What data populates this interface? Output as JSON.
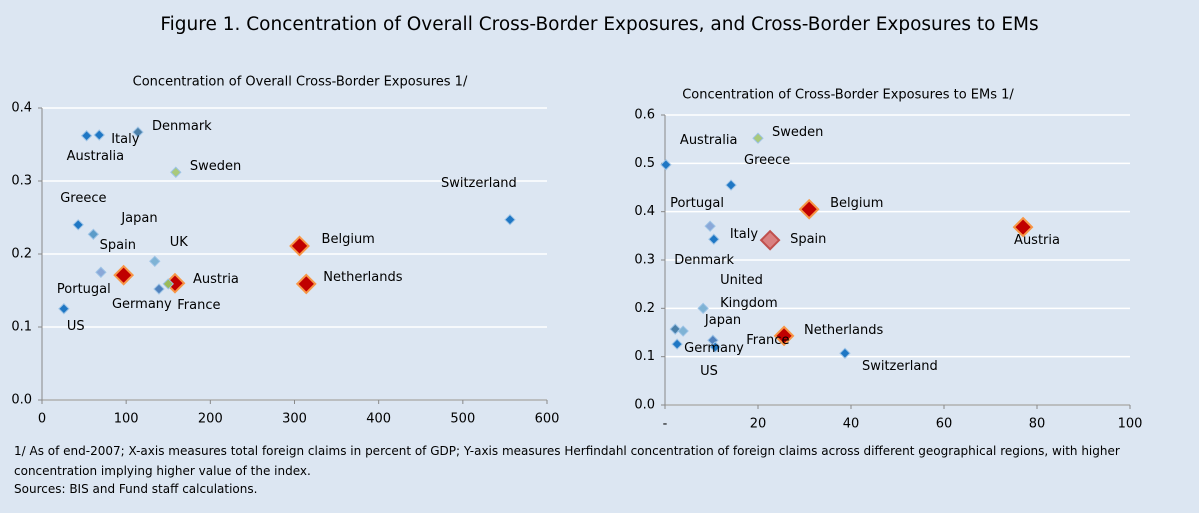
{
  "title": "Figure 1. Concentration of Overall Cross-Border Exposures, and Cross-Border Exposures to EMs",
  "chart_data": [
    {
      "type": "scatter",
      "title": "Concentration of Overall Cross-Border Exposures 1/",
      "xlim": [
        0,
        600
      ],
      "xticks": [
        0,
        100,
        200,
        300,
        400,
        500,
        600
      ],
      "ylim": [
        0,
        0.4
      ],
      "yticks": [
        {
          "value": 0,
          "label": "0.0"
        },
        {
          "value": 0.1,
          "label": "0.1"
        },
        {
          "value": 0.2,
          "label": "0.2"
        },
        {
          "value": 0.3,
          "label": "0.3"
        },
        {
          "value": 0.4,
          "label": "0.4"
        }
      ],
      "grid": true,
      "points": [
        {
          "label": "Australia",
          "x": 53,
          "y": 0.362,
          "color": "#1f77c4"
        },
        {
          "label": "Italy",
          "x": 68,
          "y": 0.363,
          "color": "#1f77c4"
        },
        {
          "label": "Denmark",
          "x": 114,
          "y": 0.367,
          "color": "#4a7fa8"
        },
        {
          "label": "Sweden",
          "x": 159,
          "y": 0.312,
          "color": "#a9c97b"
        },
        {
          "label": "Switzerland",
          "x": 556,
          "y": 0.247,
          "color": "#1f77c4"
        },
        {
          "label": "Greece",
          "x": 43,
          "y": 0.24,
          "color": "#1f77c4"
        },
        {
          "label": "Japan",
          "x": 61,
          "y": 0.227,
          "color": "#5b9bc8"
        },
        {
          "label": "UK",
          "x": 134,
          "y": 0.19,
          "color": "#7fb3d5"
        },
        {
          "label": "Portugal",
          "x": 70,
          "y": 0.175,
          "color": "#8aa8d8"
        },
        {
          "label": "Spain",
          "x": 97,
          "y": 0.171,
          "color": "#c00000"
        },
        {
          "label": "Belgium",
          "x": 306,
          "y": 0.211,
          "color": "#c00000"
        },
        {
          "label": "Austria",
          "x": 158,
          "y": 0.16,
          "color": "#c00000"
        },
        {
          "label": "Germany",
          "x": 139,
          "y": 0.152,
          "color": "#4f81bd"
        },
        {
          "label": "France",
          "x": 150,
          "y": 0.159,
          "color": "#9bbb59"
        },
        {
          "label": "Netherlands",
          "x": 314,
          "y": 0.159,
          "color": "#c00000"
        },
        {
          "label": "US",
          "x": 26,
          "y": 0.125,
          "color": "#1f77c4"
        }
      ]
    },
    {
      "type": "scatter",
      "title": "Concentration of Cross-Border Exposures to EMs 1/",
      "xlim": [
        0,
        100
      ],
      "xticks": [
        {
          "value": 0,
          "label": "-"
        },
        20,
        40,
        60,
        80,
        100
      ],
      "ylim": [
        0,
        0.6
      ],
      "yticks": [
        {
          "value": 0,
          "label": "0.0"
        },
        {
          "value": 0.1,
          "label": "0.1"
        },
        {
          "value": 0.2,
          "label": "0.2"
        },
        {
          "value": 0.3,
          "label": "0.3"
        },
        {
          "value": 0.4,
          "label": "0.4"
        },
        {
          "value": 0.5,
          "label": "0.5"
        },
        {
          "value": 0.6,
          "label": "0.6"
        }
      ],
      "grid": true,
      "points": [
        {
          "label": "Australia",
          "x": 0.2,
          "y": 0.497,
          "color": "#1f77c4"
        },
        {
          "label": "Sweden",
          "x": 20,
          "y": 0.552,
          "color": "#a9c97b"
        },
        {
          "label": "Greece",
          "x": 14.2,
          "y": 0.455,
          "color": "#1f77c4"
        },
        {
          "label": "Belgium",
          "x": 31,
          "y": 0.405,
          "color": "#c00000"
        },
        {
          "label": "Austria",
          "x": 77,
          "y": 0.368,
          "color": "#c00000"
        },
        {
          "label": "Portugal",
          "x": 9.7,
          "y": 0.37,
          "color": "#8aa8d8"
        },
        {
          "label": "Italy",
          "x": 10.5,
          "y": 0.343,
          "color": "#1f77c4"
        },
        {
          "label": "Spain",
          "x": 22.6,
          "y": 0.341,
          "color": "#d98080"
        },
        {
          "label": "United Kingdom",
          "x": 8.2,
          "y": 0.2,
          "color": "#7fb3d5"
        },
        {
          "label": "Denmark",
          "x": 2.2,
          "y": 0.157,
          "color": "#4a7fa8"
        },
        {
          "label": "Japan",
          "x": 10.3,
          "y": 0.134,
          "color": "#4f81bd"
        },
        {
          "label": "Germany",
          "x": 3.9,
          "y": 0.153,
          "color": "#7fb3d5"
        },
        {
          "label": "Netherlands",
          "x": 25.6,
          "y": 0.143,
          "color": "#c00000"
        },
        {
          "label": "France",
          "x": 10.8,
          "y": 0.12,
          "color": "#1f77c4"
        },
        {
          "label": "US",
          "x": 2.6,
          "y": 0.126,
          "color": "#1f77c4"
        },
        {
          "label": "Switzerland",
          "x": 38.7,
          "y": 0.107,
          "color": "#1f77c4"
        }
      ]
    }
  ],
  "footnote": "1/ As of end-2007; X-axis measures total foreign claims in percent of GDP; Y-axis measures Herfindahl concentration of foreign claims across different geographical regions, with higher concentration implying higher value of the index.",
  "sources": "Sources: BIS and Fund staff calculations."
}
